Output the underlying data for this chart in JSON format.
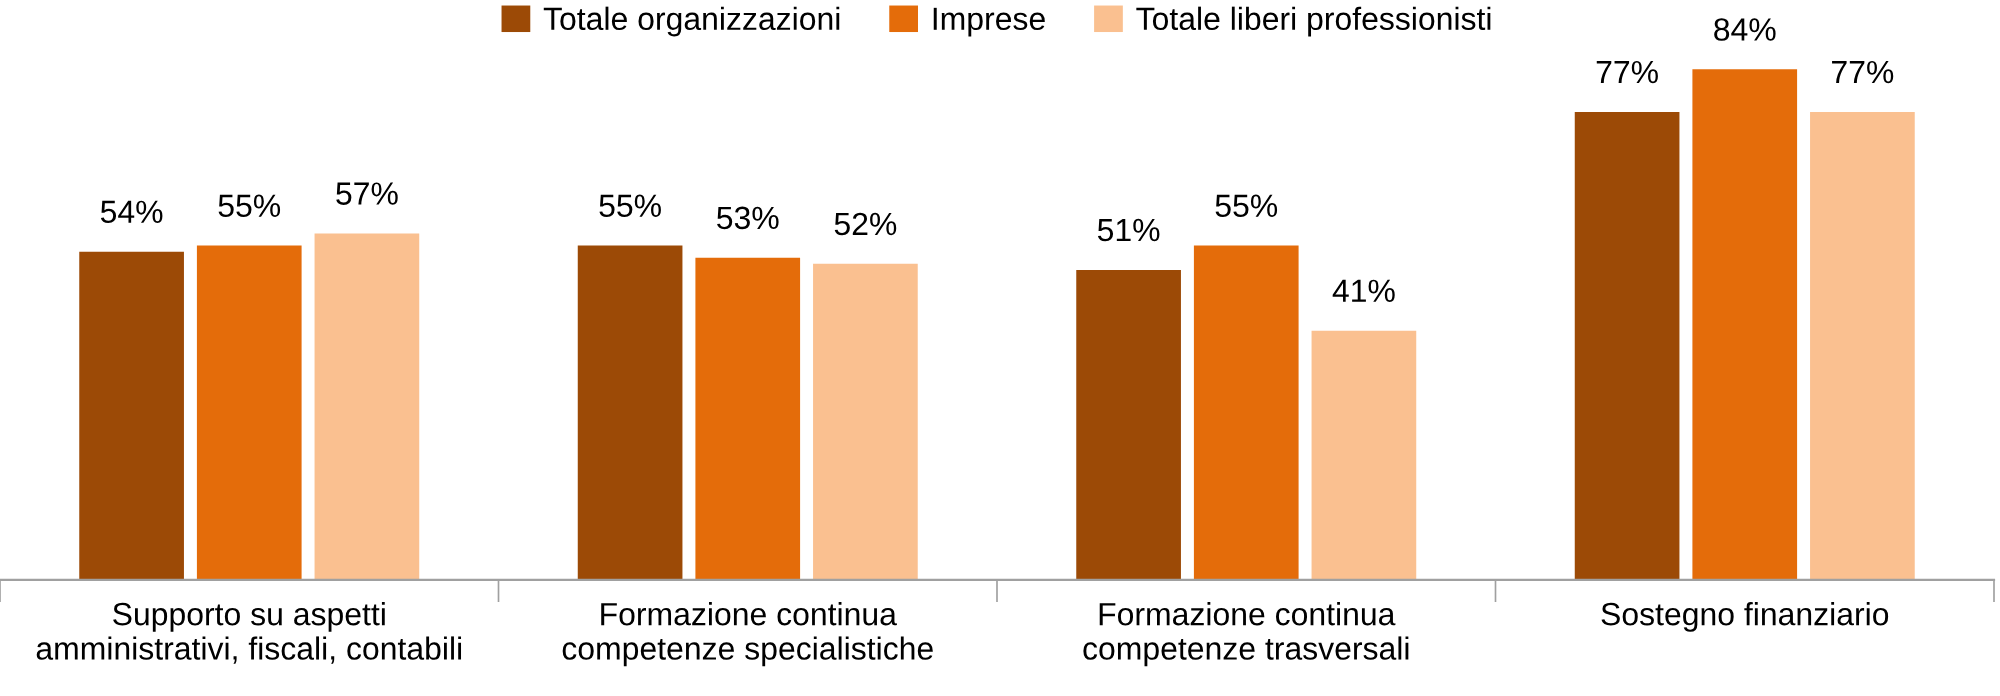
{
  "chart_data": {
    "type": "bar",
    "categories": [
      "Supporto su aspetti\namministrativi, fiscali, contabili",
      "Formazione continua\ncompetenze specialistiche",
      "Formazione continua\ncompetenze trasversali",
      "Sostegno finanziario"
    ],
    "series": [
      {
        "name": "Totale organizzazioni",
        "color": "#9c4a06",
        "values": [
          54,
          55,
          51,
          77
        ],
        "value_labels": [
          "54%",
          "55%",
          "51%",
          "77%"
        ]
      },
      {
        "name": "Imprese",
        "color": "#e46c0a",
        "values": [
          55,
          53,
          55,
          84
        ],
        "value_labels": [
          "55%",
          "53%",
          "55%",
          "84%"
        ]
      },
      {
        "name": "Totale liberi professionisti",
        "color": "#fac090",
        "values": [
          57,
          52,
          41,
          77
        ],
        "value_labels": [
          "57%",
          "52%",
          "41%",
          "77%"
        ]
      }
    ],
    "legend": "top",
    "grid": false
  }
}
